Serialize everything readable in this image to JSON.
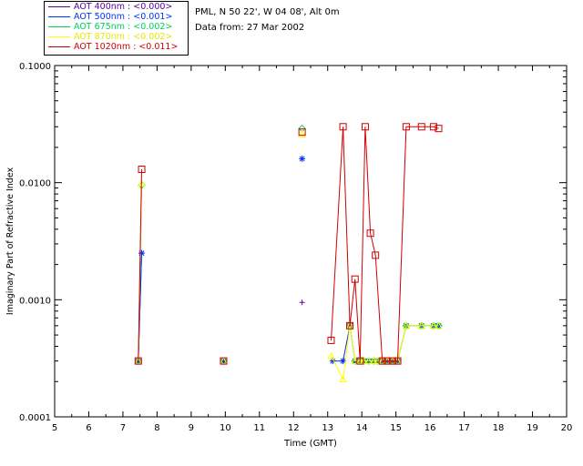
{
  "legend": {
    "entries": [
      {
        "label": "AOT  400nm : <0.000>",
        "color": "#5a00a0"
      },
      {
        "label": "AOT  500nm : <0.001>",
        "color": "#0030ff"
      },
      {
        "label": "AOT  675nm : <0.002>",
        "color": "#00d060"
      },
      {
        "label": "AOT  870nm : <0.002>",
        "color": "#ffff00"
      },
      {
        "label": "AOT 1020nm : <0.011>",
        "color": "#d00000"
      }
    ]
  },
  "info": {
    "site": "PML, N 50 22', W 04 08', Alt 0m",
    "date": "Data from: 27 Mar 2002"
  },
  "chart_data": {
    "type": "line",
    "xlabel": "Time (GMT)",
    "ylabel": "Imaginary Part of Refractive Index",
    "xlim": [
      5,
      20
    ],
    "ylim": [
      0.0001,
      0.1
    ],
    "yscale": "log",
    "x_ticks": [
      "5",
      "6",
      "7",
      "8",
      "9",
      "10",
      "11",
      "12",
      "13",
      "14",
      "15",
      "16",
      "17",
      "18",
      "19",
      "20"
    ],
    "y_ticks": [
      "0.0001",
      "0.0010",
      "0.0100",
      "0.1000"
    ],
    "series": [
      {
        "name": "AOT  400nm : <0.000>",
        "color": "#5a00a0",
        "marker": "plus",
        "x": [
          7.45,
          7.55,
          9.95,
          12.25
        ],
        "y": [
          0.0003,
          0.0025,
          0.0003,
          0.00095
        ]
      },
      {
        "name": "AOT  500nm : <0.001>",
        "color": "#0030ff",
        "marker": "asterisk",
        "x": [
          7.45,
          7.55,
          9.95,
          12.25,
          13.15,
          13.45,
          13.65,
          13.8,
          13.95,
          14.05,
          14.2,
          14.35,
          14.45,
          14.6,
          14.75,
          14.9,
          15.05,
          15.3,
          15.75,
          16.1,
          16.25
        ],
        "y": [
          0.0003,
          0.0025,
          0.0003,
          0.016,
          0.0003,
          0.0003,
          0.0006,
          0.0003,
          0.0003,
          0.0003,
          0.0003,
          0.0003,
          0.0003,
          0.0003,
          0.0003,
          0.0003,
          0.0003,
          0.0006,
          0.0006,
          0.0006,
          0.0006
        ]
      },
      {
        "name": "AOT  675nm : <0.002>",
        "color": "#00d060",
        "marker": "diamond",
        "x": [
          7.45,
          7.55,
          9.95,
          12.25,
          13.65,
          13.8,
          13.95,
          14.05,
          14.2,
          14.35,
          14.45,
          14.6,
          14.75,
          14.9,
          15.05,
          15.3,
          15.75,
          16.1,
          16.25
        ],
        "y": [
          0.0003,
          0.0095,
          0.0003,
          0.029,
          0.0006,
          0.0003,
          0.0003,
          0.0003,
          0.0003,
          0.0003,
          0.0003,
          0.0003,
          0.0003,
          0.0003,
          0.0003,
          0.0006,
          0.0006,
          0.0006,
          0.0006
        ]
      },
      {
        "name": "AOT  870nm : <0.002>",
        "color": "#ffff00",
        "marker": "triangle",
        "x": [
          7.45,
          7.55,
          9.95,
          12.25,
          13.1,
          13.45,
          13.65,
          13.8,
          13.95,
          14.05,
          14.2,
          14.35,
          14.45,
          14.6,
          14.75,
          14.9,
          15.05,
          15.3,
          15.75,
          16.1,
          16.25
        ],
        "y": [
          0.0003,
          0.0098,
          0.0003,
          0.026,
          0.00033,
          0.00021,
          0.0006,
          0.0003,
          0.0003,
          0.0003,
          0.0003,
          0.0003,
          0.0003,
          0.0003,
          0.0003,
          0.0003,
          0.0003,
          0.0006,
          0.0006,
          0.0006,
          0.0006
        ]
      },
      {
        "name": "AOT 1020nm : <0.011>",
        "color": "#d00000",
        "marker": "square",
        "x": [
          7.45,
          7.55,
          9.95,
          12.25,
          13.1,
          13.45,
          13.65,
          13.8,
          13.95,
          14.1,
          14.25,
          14.4,
          14.6,
          14.75,
          14.9,
          15.05,
          15.3,
          15.75,
          16.1,
          16.25
        ],
        "y": [
          0.0003,
          0.013,
          0.0003,
          0.027,
          0.00045,
          0.03,
          0.0006,
          0.0015,
          0.0003,
          0.03,
          0.0037,
          0.0024,
          0.0003,
          0.0003,
          0.0003,
          0.0003,
          0.03,
          0.03,
          0.03,
          0.029
        ]
      }
    ],
    "segments_note": ""
  }
}
